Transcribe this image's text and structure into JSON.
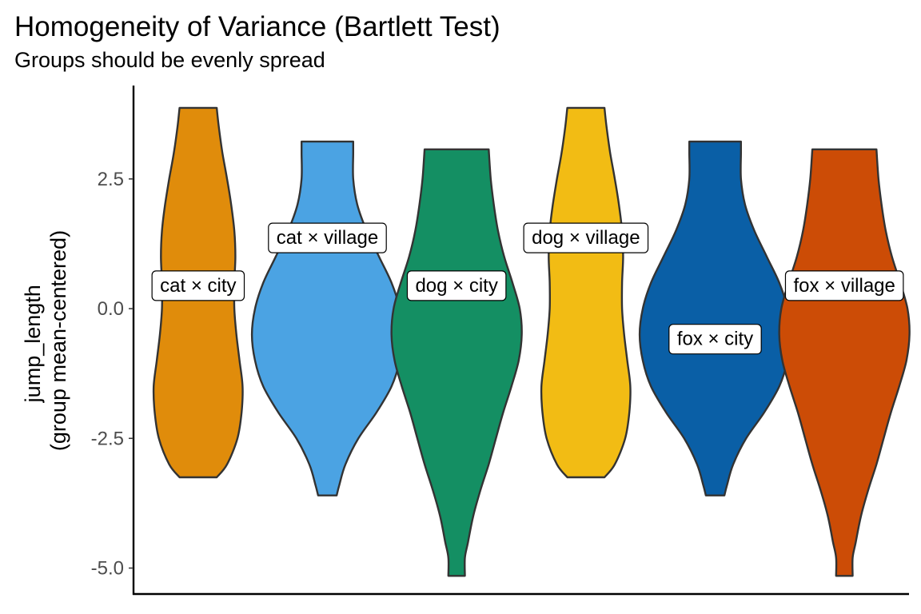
{
  "chart_data": {
    "type": "violin",
    "title": "Homogeneity of Variance (Bartlett Test)",
    "subtitle": "Groups should be evenly spread",
    "xlabel": "",
    "ylabel": [
      "jump_length",
      "(group mean-centered)"
    ],
    "ylim": [
      -5.5,
      4.3
    ],
    "yticks": [
      2.5,
      0.0,
      -2.5,
      -5.0
    ],
    "ytick_labels": [
      "2.5",
      "0.0",
      "-2.5",
      "-5.0"
    ],
    "grid": false,
    "legend": "none",
    "groups": [
      {
        "label": "cat × city",
        "color": "#E08C0B",
        "ymin": -3.25,
        "ymax": 3.87,
        "label_y": 0.45,
        "halfwidth_profile": [
          [
            -3.25,
            0.36
          ],
          [
            -3.0,
            0.56
          ],
          [
            -2.5,
            0.76
          ],
          [
            -2.0,
            0.84
          ],
          [
            -1.5,
            0.86
          ],
          [
            -1.0,
            0.8
          ],
          [
            -0.5,
            0.74
          ],
          [
            0.0,
            0.7
          ],
          [
            0.5,
            0.7
          ],
          [
            1.0,
            0.72
          ],
          [
            1.5,
            0.7
          ],
          [
            2.0,
            0.64
          ],
          [
            2.5,
            0.56
          ],
          [
            3.0,
            0.47
          ],
          [
            3.5,
            0.4
          ],
          [
            3.87,
            0.36
          ]
        ]
      },
      {
        "label": "cat × village",
        "color": "#4BA3E3",
        "ymin": -3.6,
        "ymax": 3.22,
        "label_y": 1.37,
        "halfwidth_profile": [
          [
            -3.6,
            0.18
          ],
          [
            -3.4,
            0.23
          ],
          [
            -3.0,
            0.35
          ],
          [
            -2.5,
            0.6
          ],
          [
            -2.0,
            0.95
          ],
          [
            -1.5,
            1.24
          ],
          [
            -1.0,
            1.4
          ],
          [
            -0.5,
            1.46
          ],
          [
            0.0,
            1.4
          ],
          [
            0.5,
            1.24
          ],
          [
            1.0,
            1.0
          ],
          [
            1.5,
            0.76
          ],
          [
            2.0,
            0.58
          ],
          [
            2.5,
            0.5
          ],
          [
            3.0,
            0.5
          ],
          [
            3.22,
            0.5
          ]
        ]
      },
      {
        "label": "dog × city",
        "color": "#148F63",
        "ymin": -5.15,
        "ymax": 3.07,
        "label_y": 0.45,
        "halfwidth_profile": [
          [
            -5.15,
            0.16
          ],
          [
            -4.8,
            0.16
          ],
          [
            -4.5,
            0.22
          ],
          [
            -4.0,
            0.32
          ],
          [
            -3.5,
            0.46
          ],
          [
            -3.0,
            0.62
          ],
          [
            -2.5,
            0.76
          ],
          [
            -2.0,
            0.9
          ],
          [
            -1.5,
            1.06
          ],
          [
            -1.0,
            1.2
          ],
          [
            -0.5,
            1.26
          ],
          [
            0.0,
            1.22
          ],
          [
            0.5,
            1.08
          ],
          [
            1.0,
            0.92
          ],
          [
            1.5,
            0.8
          ],
          [
            2.0,
            0.72
          ],
          [
            2.5,
            0.66
          ],
          [
            3.07,
            0.62
          ]
        ]
      },
      {
        "label": "dog × village",
        "color": "#F2BC14",
        "ymin": -3.25,
        "ymax": 3.87,
        "label_y": 1.37,
        "halfwidth_profile": [
          [
            -3.25,
            0.36
          ],
          [
            -3.0,
            0.56
          ],
          [
            -2.5,
            0.76
          ],
          [
            -2.0,
            0.84
          ],
          [
            -1.5,
            0.86
          ],
          [
            -1.0,
            0.8
          ],
          [
            -0.5,
            0.74
          ],
          [
            0.0,
            0.7
          ],
          [
            0.5,
            0.7
          ],
          [
            1.0,
            0.72
          ],
          [
            1.5,
            0.7
          ],
          [
            2.0,
            0.64
          ],
          [
            2.5,
            0.56
          ],
          [
            3.0,
            0.47
          ],
          [
            3.5,
            0.4
          ],
          [
            3.87,
            0.36
          ]
        ]
      },
      {
        "label": "fox × city",
        "color": "#0A5FA6",
        "ymin": -3.6,
        "ymax": 3.22,
        "label_y": -0.58,
        "halfwidth_profile": [
          [
            -3.6,
            0.18
          ],
          [
            -3.4,
            0.23
          ],
          [
            -3.0,
            0.35
          ],
          [
            -2.5,
            0.6
          ],
          [
            -2.0,
            0.95
          ],
          [
            -1.5,
            1.24
          ],
          [
            -1.0,
            1.4
          ],
          [
            -0.5,
            1.46
          ],
          [
            0.0,
            1.4
          ],
          [
            0.5,
            1.24
          ],
          [
            1.0,
            1.0
          ],
          [
            1.5,
            0.76
          ],
          [
            2.0,
            0.58
          ],
          [
            2.5,
            0.5
          ],
          [
            3.0,
            0.5
          ],
          [
            3.22,
            0.5
          ]
        ]
      },
      {
        "label": "fox × village",
        "color": "#CC4C06",
        "ymin": -5.15,
        "ymax": 3.07,
        "label_y": 0.45,
        "halfwidth_profile": [
          [
            -5.15,
            0.16
          ],
          [
            -4.8,
            0.16
          ],
          [
            -4.5,
            0.22
          ],
          [
            -4.0,
            0.32
          ],
          [
            -3.5,
            0.46
          ],
          [
            -3.0,
            0.62
          ],
          [
            -2.5,
            0.76
          ],
          [
            -2.0,
            0.9
          ],
          [
            -1.5,
            1.06
          ],
          [
            -1.0,
            1.2
          ],
          [
            -0.5,
            1.26
          ],
          [
            0.0,
            1.22
          ],
          [
            0.5,
            1.08
          ],
          [
            1.0,
            0.92
          ],
          [
            1.5,
            0.8
          ],
          [
            2.0,
            0.72
          ],
          [
            2.5,
            0.66
          ],
          [
            3.07,
            0.62
          ]
        ]
      }
    ]
  }
}
